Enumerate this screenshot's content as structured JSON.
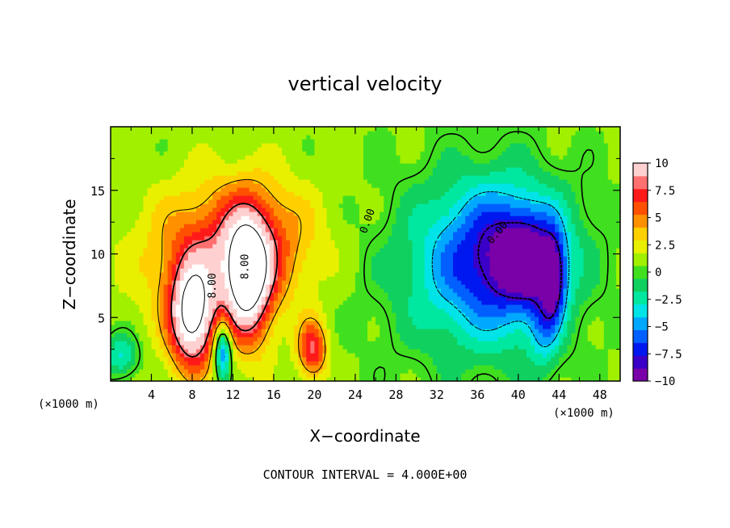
{
  "chart_data": {
    "type": "heatmap",
    "title": "vertical velocity",
    "xlabel": "X−coordinate",
    "ylabel": "Z−coordinate",
    "x_unit_left": "(×1000 m)",
    "x_unit_right": "(×1000 m)",
    "footer": "CONTOUR INTERVAL = 4.000E+00",
    "xlim": [
      0,
      50
    ],
    "ylim": [
      0,
      20
    ],
    "x_ticks": [
      "4",
      "8",
      "12",
      "16",
      "20",
      "24",
      "28",
      "32",
      "36",
      "40",
      "44",
      "48"
    ],
    "x_tick_values": [
      4,
      8,
      12,
      16,
      20,
      24,
      28,
      32,
      36,
      40,
      44,
      48
    ],
    "y_ticks": [
      "5",
      "10",
      "15"
    ],
    "y_tick_values": [
      5,
      10,
      15
    ],
    "colorbar": {
      "min": -10,
      "max": 10,
      "labels": [
        "10",
        "7.5",
        "5",
        "2.5",
        "0",
        "−2.5",
        "−5",
        "−7.5",
        "−10"
      ],
      "label_values": [
        10,
        7.5,
        5,
        2.5,
        0,
        -2.5,
        -5,
        -7.5,
        -10
      ],
      "colors": [
        "#7a00a8",
        "#3a00c8",
        "#0018f0",
        "#0060ff",
        "#00a8ff",
        "#00e4e8",
        "#00e8a0",
        "#10d060",
        "#40e020",
        "#a0f000",
        "#e8f000",
        "#ffd000",
        "#ff9000",
        "#ff5000",
        "#ff1a1a",
        "#ff7070",
        "#ffd0d0"
      ]
    },
    "contour_labels": [
      "0.00",
      "8.00",
      "8.00",
      "0.00"
    ],
    "features": [
      {
        "kind": "updraft",
        "x": 8,
        "z": 5.0,
        "sx": 1.6,
        "sz": 3.0,
        "value": 11
      },
      {
        "kind": "updraft",
        "x": 13.5,
        "z": 8.0,
        "sx": 1.6,
        "sz": 3.5,
        "value": 10.5
      },
      {
        "kind": "updraft",
        "x": 9.0,
        "z": 9.5,
        "sx": 5.0,
        "sz": 4.0,
        "value": 3.5
      },
      {
        "kind": "updraft",
        "x": 14.0,
        "z": 11.0,
        "sx": 4.5,
        "sz": 3.5,
        "value": 4.5
      },
      {
        "kind": "updraft",
        "x": 19.8,
        "z": 2.5,
        "sx": 1.0,
        "sz": 1.6,
        "value": 7
      },
      {
        "kind": "downdraft",
        "x": 11.0,
        "z": 2.5,
        "sx": 0.6,
        "sz": 1.6,
        "value": -8
      },
      {
        "kind": "downdraft",
        "x": 1.0,
        "z": 2.0,
        "sx": 1.2,
        "sz": 1.2,
        "value": -4
      },
      {
        "kind": "downdraft",
        "x": 38.5,
        "z": 10.0,
        "sx": 4.5,
        "sz": 4.0,
        "value": -6.5
      },
      {
        "kind": "downdraft",
        "x": 41.0,
        "z": 9.5,
        "sx": 2.0,
        "sz": 2.5,
        "value": -5
      },
      {
        "kind": "downdraft",
        "x": 43.5,
        "z": 8.0,
        "sx": 0.8,
        "sz": 2.5,
        "value": -6
      },
      {
        "kind": "downdraft",
        "x": 42.5,
        "z": 4.0,
        "sx": 1.0,
        "sz": 2.5,
        "value": -3
      },
      {
        "kind": "downdraft",
        "x": 35.5,
        "z": 8.5,
        "sx": 6.0,
        "sz": 5.0,
        "value": -3.5
      }
    ]
  }
}
